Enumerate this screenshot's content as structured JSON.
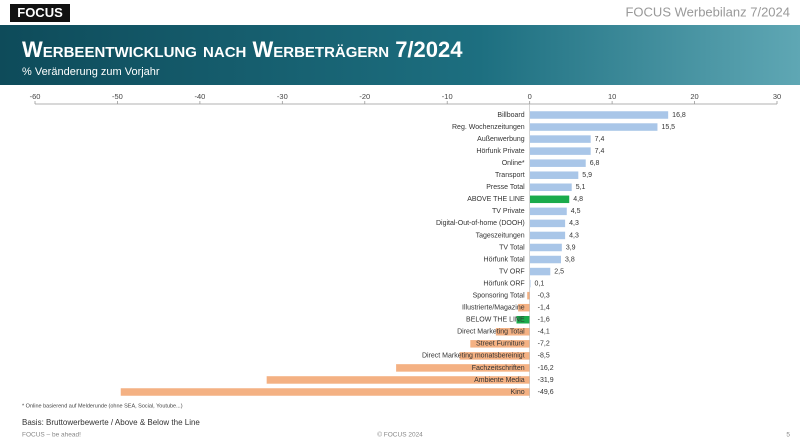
{
  "header": {
    "logo": "FOCUS",
    "report": "FOCUS Werbebilanz 7/2024"
  },
  "chart_data": {
    "type": "bar",
    "orientation": "horizontal",
    "title": "Werbeentwicklung nach Werbeträgern 7/2024",
    "subtitle": "% Veränderung zum Vorjahr",
    "categories": [
      "Billboard",
      "Reg. Wochenzeitungen",
      "Außenwerbung",
      "Hörfunk Private",
      "Online*",
      "Transport",
      "Presse Total",
      "ABOVE THE LINE",
      "TV Private",
      "Digital-Out-of-home (DOOH)",
      "Tageszeitungen",
      "TV Total",
      "Hörfunk Total",
      "TV ORF",
      "Hörfunk ORF",
      "Sponsoring Total",
      "Illustrierte/Magazine",
      "BELOW THE LINE",
      "Direct Marketing Total",
      "Street Furniture",
      "Direct Marketing monatsbereinigt",
      "Fachzeitschriften",
      "Ambiente Media",
      "Kino"
    ],
    "values": [
      16.8,
      15.5,
      7.4,
      7.4,
      6.8,
      5.9,
      5.1,
      4.8,
      4.5,
      4.3,
      4.3,
      3.9,
      3.8,
      2.5,
      0.1,
      -0.3,
      -1.4,
      -1.6,
      -4.1,
      -7.2,
      -8.5,
      -16.2,
      -31.9,
      -49.6
    ],
    "value_labels": [
      "16,8",
      "15,5",
      "7,4",
      "7,4",
      "6,8",
      "5,9",
      "5,1",
      "4,8",
      "4,5",
      "4,3",
      "4,3",
      "3,9",
      "3,8",
      "2,5",
      "0,1",
      "-0,3",
      "-1,4",
      "-1,6",
      "-4,1",
      "-7,2",
      "-8,5",
      "-16,2",
      "-31,9",
      "-49,6"
    ],
    "colors": [
      "#a9c6e8",
      "#a9c6e8",
      "#a9c6e8",
      "#a9c6e8",
      "#a9c6e8",
      "#a9c6e8",
      "#a9c6e8",
      "#1aab4b",
      "#a9c6e8",
      "#a9c6e8",
      "#a9c6e8",
      "#a9c6e8",
      "#a9c6e8",
      "#a9c6e8",
      "#a9c6e8",
      "#f4b183",
      "#f4b183",
      "#1aab4b",
      "#f4b183",
      "#f4b183",
      "#f4b183",
      "#f4b183",
      "#f4b183",
      "#f4b183"
    ],
    "xlim": [
      -60,
      30
    ],
    "xticks": [
      -60,
      -50,
      -40,
      -30,
      -20,
      -10,
      0,
      10,
      20,
      30
    ]
  },
  "footnote": "* Online basierend auf Melderunde (ohne SEA, Social, Youtube...)",
  "basis": "Basis: Bruttowerbewerte / Above & Below the Line",
  "footer": {
    "left": "FOCUS – be ahead!",
    "center": "© FOCUS 2024",
    "page": "5"
  }
}
